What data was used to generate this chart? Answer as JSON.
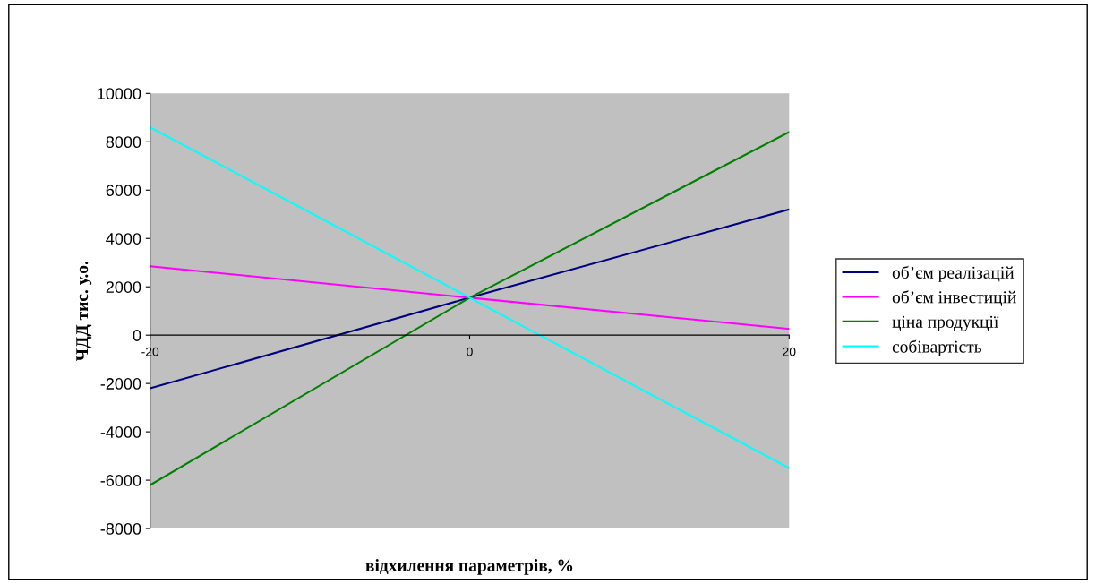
{
  "chart_data": {
    "type": "line",
    "xlabel": "відхилення параметрів, %",
    "ylabel": "ЧДД тис. у.о.",
    "x": [
      -20,
      0,
      20
    ],
    "series": [
      {
        "name": "об’єм реалізацій",
        "color": "#000080",
        "values": [
          -2200,
          1550,
          5200
        ]
      },
      {
        "name": "об’єм інвестицій",
        "color": "#ff00ff",
        "values": [
          2850,
          1550,
          260
        ]
      },
      {
        "name": "ціна продукції",
        "color": "#008000",
        "values": [
          -6200,
          1550,
          8400
        ]
      },
      {
        "name": "собівартість",
        "color": "#00ffff",
        "values": [
          8600,
          1550,
          -5500
        ]
      }
    ],
    "xlim": [
      -20,
      20
    ],
    "xticks": [
      -20,
      0,
      20
    ],
    "ylim": [
      -8000,
      10000
    ],
    "yticks": [
      -8000,
      -6000,
      -4000,
      -2000,
      0,
      2000,
      4000,
      6000,
      8000,
      10000
    ],
    "grid": false,
    "legend": "right",
    "marker": "none",
    "line_style": "solid"
  }
}
